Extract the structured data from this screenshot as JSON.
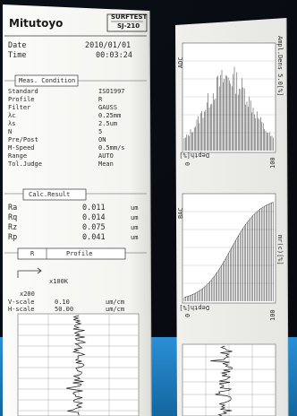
{
  "printout1": {
    "brand": "Mitutoyo",
    "model_top": "SURFTEST",
    "model_bottom": "SJ-210",
    "date_label": "Date",
    "date_value": "2010/01/01",
    "time_label": "Time",
    "time_value": "00:03:24",
    "meas_condition_title": "Meas. Condition",
    "conditions": [
      {
        "label": "Standard",
        "value": "ISO1997"
      },
      {
        "label": "Profile",
        "value": "R"
      },
      {
        "label": "Filter",
        "value": "GAUSS"
      },
      {
        "label": "λc",
        "value": "0.25mm"
      },
      {
        "label": "λs",
        "value": "2.5um"
      },
      {
        "label": "N",
        "value": "5"
      },
      {
        "label": "Pre/Post",
        "value": "ON"
      },
      {
        "label": "M-Speed",
        "value": "0.5mm/s"
      },
      {
        "label": "Range",
        "value": "AUTO"
      },
      {
        "label": "Tol.Judge",
        "value": "Mean"
      }
    ],
    "calc_result_title": "Calc.Result",
    "results": [
      {
        "label": "Ra",
        "value": "0.011",
        "unit": "um"
      },
      {
        "label": "Rq",
        "value": "0.014",
        "unit": "um"
      },
      {
        "label": "Rz",
        "value": "0.075",
        "unit": "um"
      },
      {
        "label": "Rp",
        "value": "0.041",
        "unit": "um"
      }
    ],
    "profile_tab": "R",
    "profile_title": "Profile",
    "mag_h": "x100K",
    "mag_v": "x200",
    "vscale_label": "V-scale",
    "vscale_value": "0.10",
    "vscale_unit": "um/cm",
    "hscale_label": "H-scale",
    "hscale_value": "50.00",
    "hscale_unit": "um/cm"
  },
  "printout2": {
    "adc_label": "ADC",
    "adc_scale": "Ampl.Dens 5.0[%]",
    "adc_depth": "Depth[%]",
    "adc_axis_min": "0",
    "adc_axis_max": "100",
    "bac_label": "BAC",
    "bac_scale": "mr(c)[%]",
    "bac_depth": "Depth[%]",
    "bac_axis_min": "0",
    "bac_axis_max": "100"
  },
  "colors": {
    "background": "#0a0e14",
    "accent_blue": "#1d7fc8",
    "paper": "#f4f4f1"
  }
}
